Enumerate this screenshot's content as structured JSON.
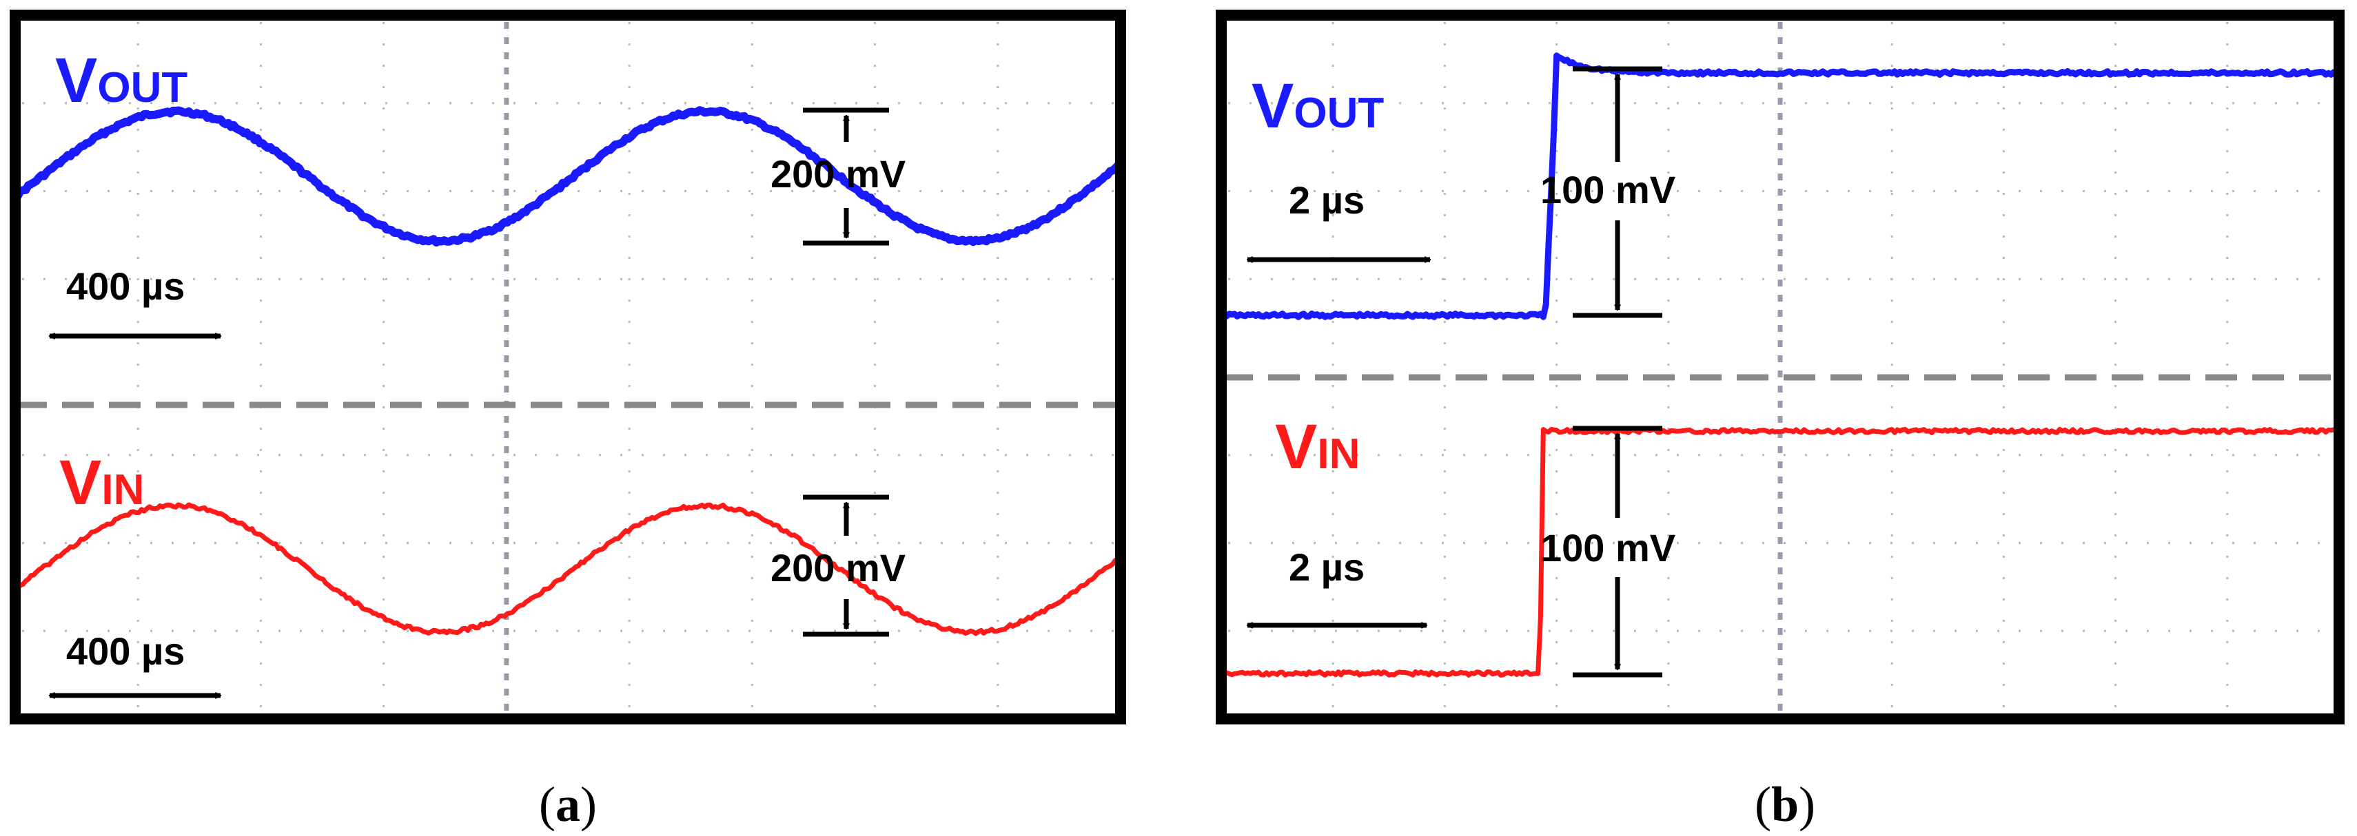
{
  "chart_data": [
    {
      "type": "line",
      "panel": "a",
      "caption": {
        "open": "(",
        "letter": "a",
        "close": ")"
      },
      "grid": true,
      "x": [
        0,
        1,
        2,
        3,
        4,
        5,
        6,
        7,
        8,
        9
      ],
      "series": [
        {
          "label": "V",
          "subscript": "OUT",
          "color": "#1a1aff",
          "kind": "sine",
          "min": 0.0,
          "max": 0.2,
          "period_div": 4.33,
          "peak_div": 1.3
        },
        {
          "label": "V",
          "subscript": "IN",
          "color": "#ff1a1a",
          "kind": "sine",
          "min": 0.0,
          "max": 0.2,
          "period_div": 4.33,
          "peak_div": 1.3
        }
      ],
      "annotations": {
        "amplitude_label": "200 mV",
        "time_label": "400 µs"
      }
    },
    {
      "type": "line",
      "panel": "b",
      "caption": {
        "open": "(",
        "letter": "b",
        "close": ")"
      },
      "grid": true,
      "x": [
        0,
        1,
        2,
        3,
        4,
        5,
        6,
        7,
        8,
        9,
        10
      ],
      "series": [
        {
          "label": "V",
          "subscript": "OUT",
          "color": "#1a1aff",
          "kind": "step",
          "initial": 0.0,
          "final": 0.1,
          "step_div": 2.9,
          "rise_div": 0.1,
          "overshoot": 0.007
        },
        {
          "label": "V",
          "subscript": "IN",
          "color": "#ff1a1a",
          "kind": "step",
          "initial": 0.0,
          "final": 0.1,
          "step_div": 2.85,
          "rise_div": 0.03,
          "overshoot": 0.0
        }
      ],
      "annotations": {
        "amplitude_label": "100 mV",
        "time_label": "2 µs"
      }
    }
  ]
}
